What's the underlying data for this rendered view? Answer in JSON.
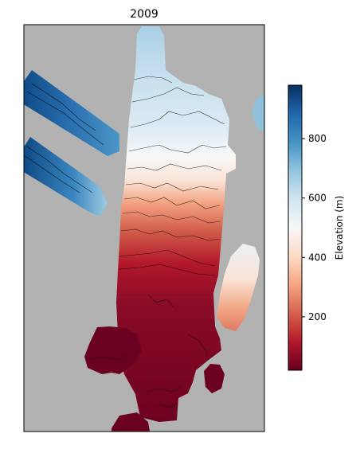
{
  "chart_data": {
    "type": "heatmap",
    "title": "2009",
    "xlabel": "",
    "ylabel": "",
    "colorbar": {
      "label": "Elevation (m)",
      "colormap": "RdBu",
      "range": [
        20,
        980
      ],
      "ticks": [
        200,
        400,
        600,
        800
      ],
      "tick_labels": [
        "200",
        "400",
        "600",
        "800"
      ]
    },
    "axes": {
      "ticks_shown": false,
      "grid": false,
      "background_color": "#b2b2b2"
    },
    "legend": "none"
  }
}
